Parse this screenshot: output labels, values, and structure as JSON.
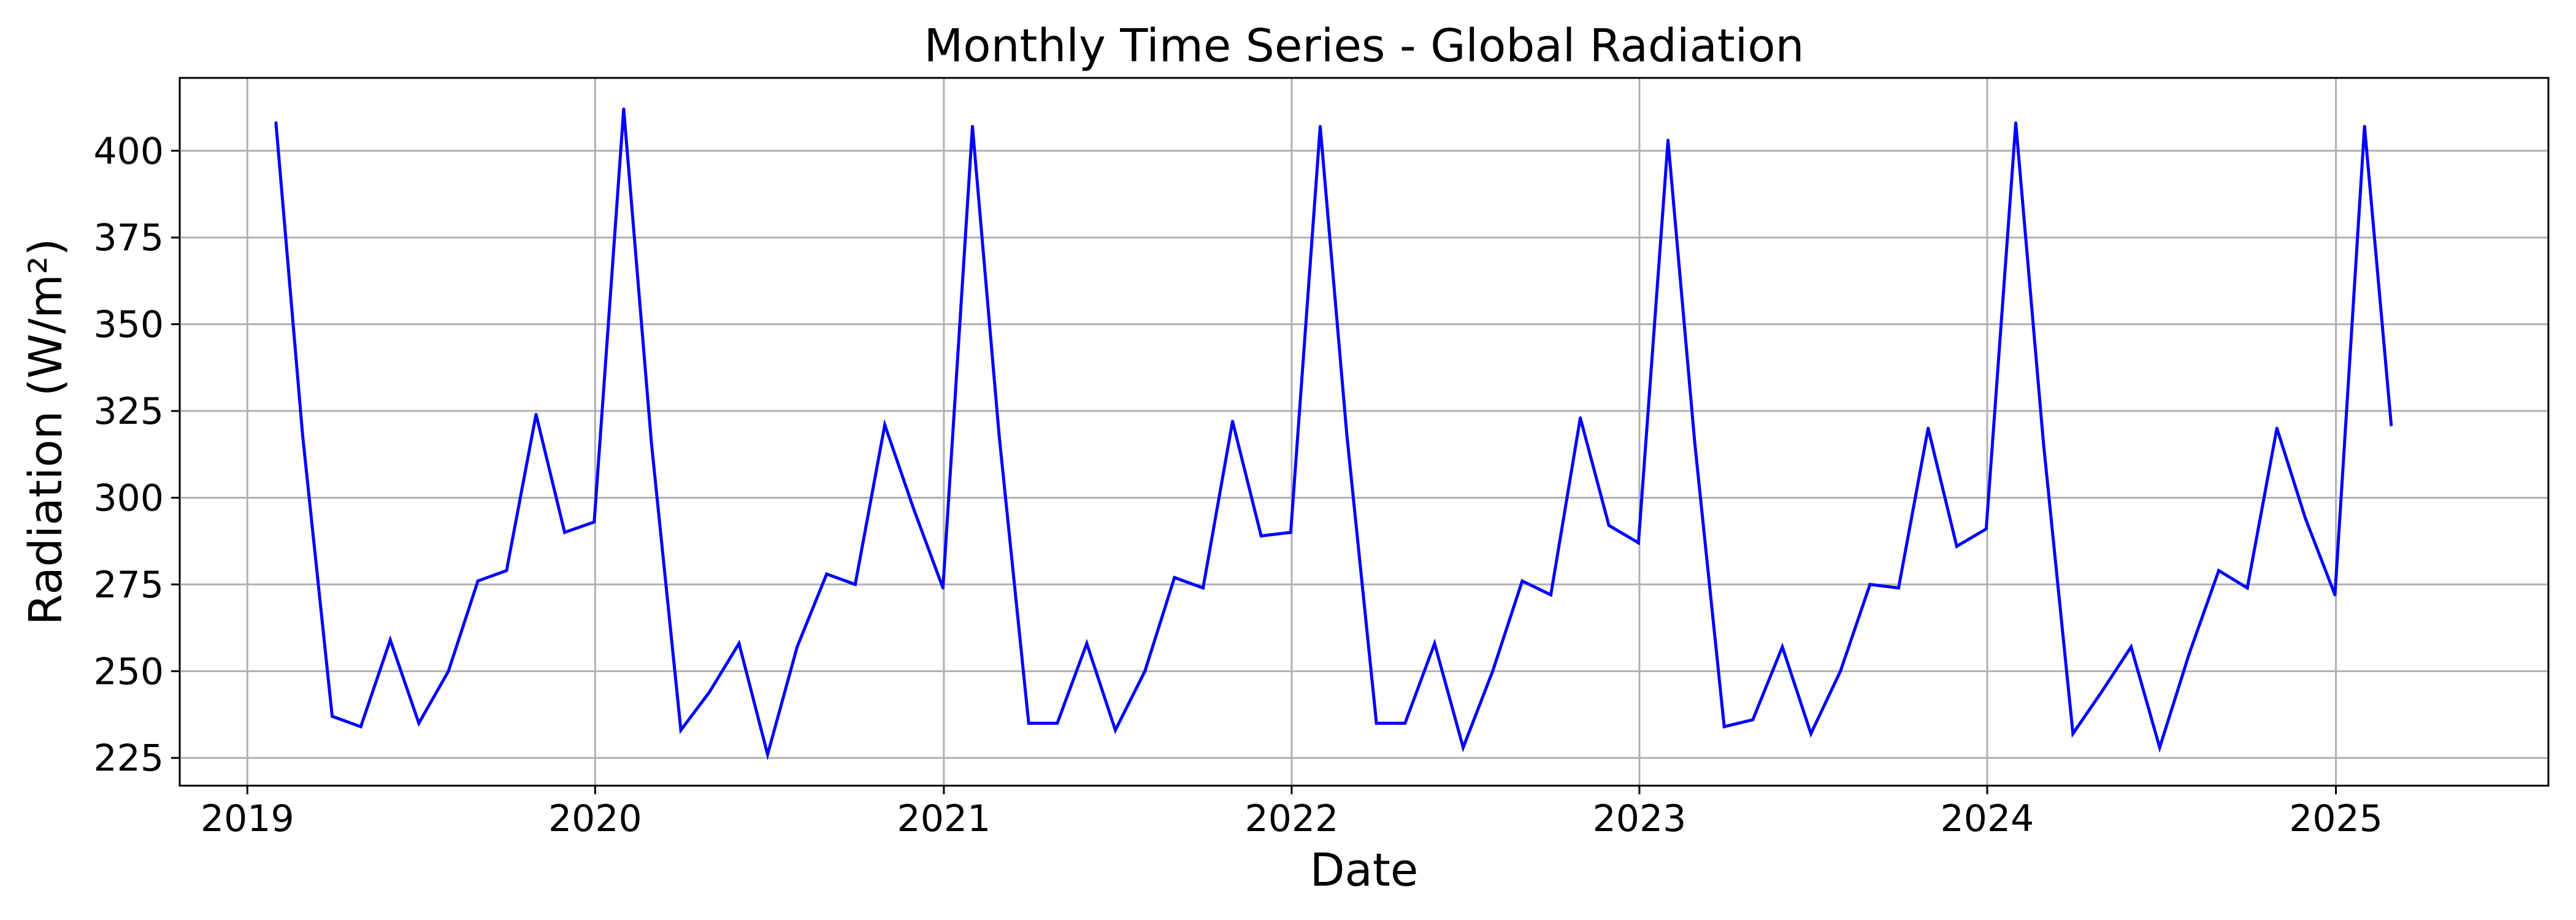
{
  "chart_data": {
    "type": "line",
    "title": "Monthly Time Series - Global Radiation",
    "xlabel": "Date",
    "ylabel": "Radiation (W/m²)",
    "xlim": [
      "2018-10-22",
      "2025-08-12"
    ],
    "ylim": [
      217,
      421
    ],
    "x_ticks": [
      "2019",
      "2020",
      "2021",
      "2022",
      "2023",
      "2024",
      "2025"
    ],
    "y_ticks": [
      225,
      250,
      275,
      300,
      325,
      350,
      375,
      400
    ],
    "grid": true,
    "colors": {
      "line": "#0000ff",
      "grid": "#b0b0b0"
    },
    "series": [
      {
        "x": [
          "2019-01-31",
          "2019-02-28",
          "2019-03-31",
          "2019-04-30",
          "2019-05-31",
          "2019-06-30",
          "2019-07-31",
          "2019-08-31",
          "2019-09-30",
          "2019-10-31",
          "2019-11-30",
          "2019-12-31",
          "2020-01-31",
          "2020-02-29",
          "2020-03-31",
          "2020-04-30",
          "2020-05-31",
          "2020-06-30",
          "2020-07-31",
          "2020-08-31",
          "2020-09-30",
          "2020-10-31",
          "2020-11-30",
          "2020-12-31",
          "2021-01-31",
          "2021-02-28",
          "2021-03-31",
          "2021-04-30",
          "2021-05-31",
          "2021-06-30",
          "2021-07-31",
          "2021-08-31",
          "2021-09-30",
          "2021-10-31",
          "2021-11-30",
          "2021-12-31",
          "2022-01-31",
          "2022-02-28",
          "2022-03-31",
          "2022-04-30",
          "2022-05-31",
          "2022-06-30",
          "2022-07-31",
          "2022-08-31",
          "2022-09-30",
          "2022-10-31",
          "2022-11-30",
          "2022-12-31",
          "2023-01-31",
          "2023-02-28",
          "2023-03-31",
          "2023-04-30",
          "2023-05-31",
          "2023-06-30",
          "2023-07-31",
          "2023-08-31",
          "2023-09-30",
          "2023-10-31",
          "2023-11-30",
          "2023-12-31",
          "2024-01-31",
          "2024-02-29",
          "2024-03-31",
          "2024-04-30",
          "2024-05-31",
          "2024-06-30",
          "2024-07-31",
          "2024-08-31",
          "2024-09-30",
          "2024-10-31",
          "2024-11-30",
          "2024-12-31",
          "2025-01-31",
          "2025-02-28"
        ],
        "values": [
          408,
          318,
          237,
          234,
          259,
          235,
          250,
          276,
          279,
          324,
          290,
          293,
          412,
          316,
          233,
          244,
          258,
          226,
          257,
          278,
          275,
          321,
          297,
          274,
          407,
          318,
          235,
          235,
          258,
          233,
          250,
          277,
          274,
          322,
          289,
          290,
          407,
          318,
          235,
          235,
          258,
          228,
          250,
          276,
          272,
          323,
          292,
          287,
          403,
          316,
          234,
          236,
          257,
          232,
          250,
          275,
          274,
          320,
          286,
          291,
          408,
          316,
          232,
          244,
          257,
          228,
          255,
          279,
          274,
          320,
          294,
          272,
          407,
          321
        ]
      }
    ]
  }
}
